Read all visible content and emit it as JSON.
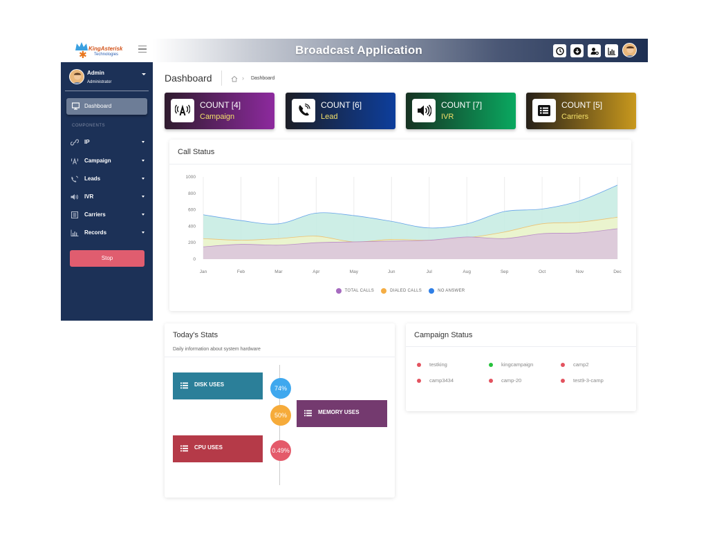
{
  "app": {
    "logo_name": "KingAsterisk",
    "logo_sub": "Technologies",
    "title": "Broadcast Application"
  },
  "user": {
    "name": "Admin",
    "role": "Administrator"
  },
  "sidebar": {
    "active": "Dashboard",
    "section_label": "COMPONENTS",
    "items": [
      {
        "label": "IP",
        "icon": "link-icon"
      },
      {
        "label": "Campaign",
        "icon": "antenna-icon"
      },
      {
        "label": "Leads",
        "icon": "phone-icon"
      },
      {
        "label": "IVR",
        "icon": "speaker-icon"
      },
      {
        "label": "Carriers",
        "icon": "list-icon"
      },
      {
        "label": "Records",
        "icon": "bar-chart-icon"
      }
    ],
    "stop_label": "Stop"
  },
  "page": {
    "title": "Dashboard",
    "breadcrumb": "Dashboard"
  },
  "cards": [
    {
      "count": "COUNT [4]",
      "label": "Campaign",
      "icon": "antenna-icon",
      "from": "#2f1b2e",
      "to": "#8d2a9e"
    },
    {
      "count": "COUNT [6]",
      "label": "Lead",
      "icon": "phone-icon",
      "from": "#1c1e26",
      "to": "#0d3e9c"
    },
    {
      "count": "COUNT [7]",
      "label": "IVR",
      "icon": "speaker-icon",
      "from": "#163222",
      "to": "#0aa860"
    },
    {
      "count": "COUNT [5]",
      "label": "Carriers",
      "icon": "list-icon",
      "from": "#262019",
      "to": "#c8981d"
    }
  ],
  "call_status": {
    "title": "Call Status",
    "chart_data": {
      "type": "area",
      "categories": [
        "Jan",
        "Feb",
        "Mar",
        "Apr",
        "May",
        "Jun",
        "Jul",
        "Aug",
        "Sep",
        "Oct",
        "Nov",
        "Dec"
      ],
      "ylim": [
        0,
        1000
      ],
      "yticks": [
        0,
        200,
        400,
        600,
        800,
        1000
      ],
      "grid": true,
      "legend_position": "bottom",
      "series": [
        {
          "name": "TOTAL CALLS",
          "color": "#a66bbf",
          "fill": "#dbc3dc",
          "values": [
            150,
            180,
            170,
            200,
            210,
            220,
            230,
            270,
            250,
            310,
            320,
            370
          ]
        },
        {
          "name": "DIALED CALLS",
          "color": "#f4ad44",
          "fill": "#eef5c9",
          "values": [
            250,
            230,
            250,
            280,
            210,
            240,
            230,
            260,
            330,
            430,
            450,
            510
          ]
        },
        {
          "name": "NO ANSWER",
          "color": "#2f7fe6",
          "fill": "#c4ebe2",
          "values": [
            540,
            470,
            430,
            560,
            530,
            460,
            380,
            430,
            580,
            610,
            710,
            900
          ]
        }
      ]
    }
  },
  "today_stats": {
    "title": "Today's Stats",
    "subtitle": "Daily information about system hardware",
    "items": [
      {
        "label": "DISK USES",
        "value": "74%",
        "color": "#2b7f99",
        "circle": "#3fa8ee"
      },
      {
        "label": "MEMORY USES",
        "value": "50%",
        "color": "#743a6f",
        "circle": "#f6ab3a"
      },
      {
        "label": "CPU USES",
        "value": "0.49%",
        "color": "#b53a48",
        "circle": "#e45a6a"
      }
    ]
  },
  "campaign_status": {
    "title": "Campaign Status",
    "items": [
      {
        "name": "testking",
        "status_color": "#e3535f"
      },
      {
        "name": "kingcampaign",
        "status_color": "#26c23c"
      },
      {
        "name": "camp2",
        "status_color": "#e3535f"
      },
      {
        "name": "camp3434",
        "status_color": "#e3535f"
      },
      {
        "name": "camp-20",
        "status_color": "#e3535f"
      },
      {
        "name": "test9-3-camp",
        "status_color": "#e3535f"
      }
    ]
  }
}
